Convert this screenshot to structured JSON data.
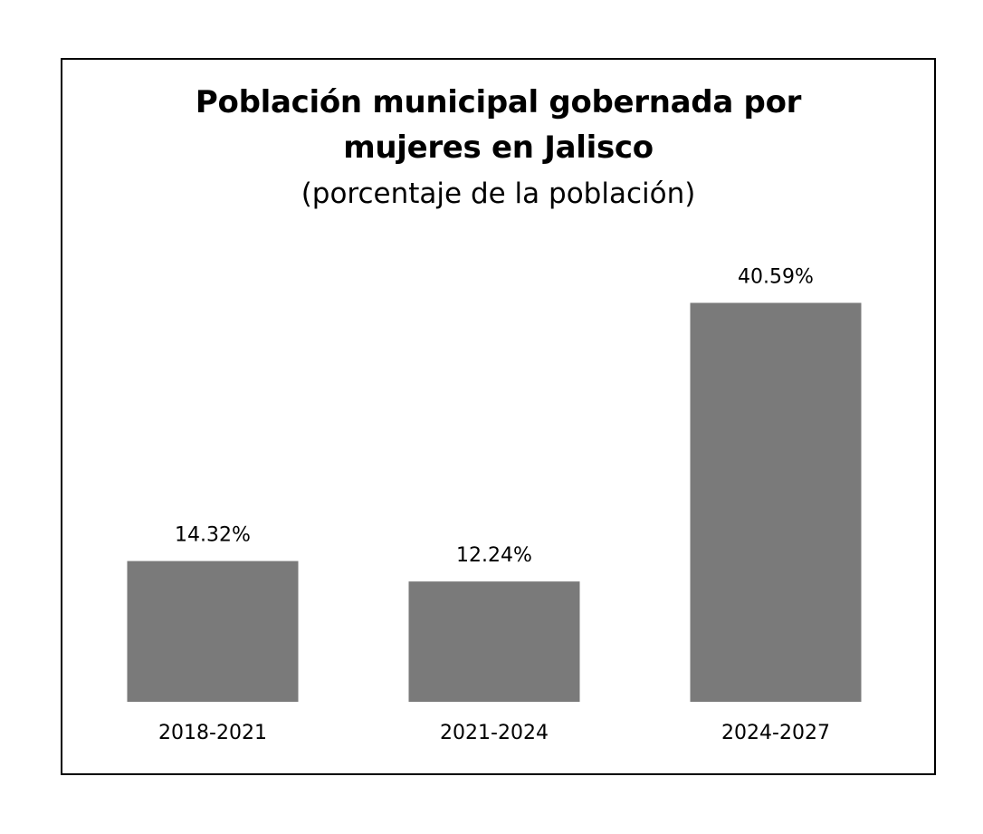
{
  "chart_data": {
    "type": "bar",
    "title_lines": [
      "Población municipal gobernada por",
      "mujeres en Jalisco"
    ],
    "subtitle": "(porcentaje de la población)",
    "categories": [
      "2018-2021",
      "2021-2024",
      "2024-2027"
    ],
    "values": [
      14.32,
      12.24,
      40.59
    ],
    "value_labels": [
      "14.32%",
      "12.24%",
      "40.59%"
    ],
    "xlabel": "",
    "ylabel": "",
    "ylim": [
      0,
      41
    ],
    "grid": false,
    "legend": "none",
    "bar_color": "#7a7a7a"
  }
}
